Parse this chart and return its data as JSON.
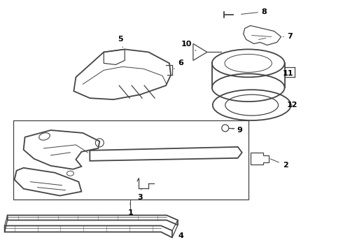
{
  "bg_color": "#ffffff",
  "line_color": "#444444",
  "label_color": "#000000",
  "figsize": [
    4.9,
    3.6
  ],
  "dpi": 100
}
